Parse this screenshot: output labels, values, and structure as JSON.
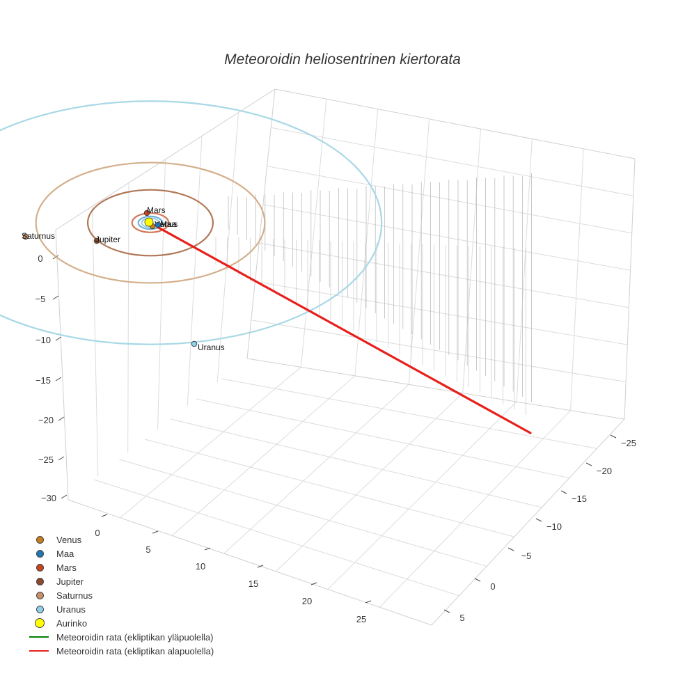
{
  "chart_data": {
    "type": "scatter3d",
    "title": "Meteoroidin heliosentrinen kiertorata",
    "axes": {
      "x": {
        "ticks": [
          "0",
          "5",
          "10",
          "15",
          "20",
          "25"
        ]
      },
      "y": {
        "ticks": [
          "−25",
          "−20",
          "−15",
          "−10",
          "−5",
          "0",
          "5"
        ]
      },
      "z": {
        "ticks": [
          "0",
          "−5",
          "−10",
          "−15",
          "−20",
          "−25",
          "−30"
        ]
      }
    },
    "orbits": [
      {
        "name": "Venus",
        "radius_au": 0.72,
        "color": "#9fd0e0"
      },
      {
        "name": "Maa",
        "radius_au": 1.0,
        "color": "#6fb0d8"
      },
      {
        "name": "Mars",
        "radius_au": 1.52,
        "color": "#d2785a"
      },
      {
        "name": "Jupiter",
        "radius_au": 5.2,
        "color": "#b07858"
      },
      {
        "name": "Saturnus",
        "radius_au": 9.5,
        "color": "#d4b08c"
      },
      {
        "name": "Uranus",
        "radius_au": 19.2,
        "color": "#a8d8e6"
      }
    ],
    "planets": [
      {
        "name": "Venus",
        "label": "Venus",
        "color": "#c97c1c"
      },
      {
        "name": "Maa",
        "label": "Maa",
        "color": "#1f77b4"
      },
      {
        "name": "Mars",
        "label": "Mars",
        "color": "#c8441e"
      },
      {
        "name": "Jupiter",
        "label": "Jupiter",
        "color": "#8b4a2b"
      },
      {
        "name": "Saturnus",
        "label": "Saturnus",
        "color": "#c89068"
      },
      {
        "name": "Uranus",
        "label": "Uranus",
        "color": "#8fd0e8"
      }
    ],
    "sun": {
      "name": "Aurinko",
      "color": "#ffff00"
    },
    "meteoroid_below_ecliptic": {
      "color": "#e8201c",
      "start": {
        "x": 25,
        "y": -28,
        "z": -18
      },
      "end": {
        "x": 0,
        "y": 0,
        "z": 0
      }
    },
    "legend": [
      {
        "label": "Venus",
        "kind": "dot",
        "color": "#c97c1c"
      },
      {
        "label": "Maa",
        "kind": "dot",
        "color": "#1f77b4"
      },
      {
        "label": "Mars",
        "kind": "dot",
        "color": "#c8441e"
      },
      {
        "label": "Jupiter",
        "kind": "dot",
        "color": "#8b4a2b"
      },
      {
        "label": "Saturnus",
        "kind": "dot",
        "color": "#c89068"
      },
      {
        "label": "Uranus",
        "kind": "dot",
        "color": "#8fd0e8"
      },
      {
        "label": "Aurinko",
        "kind": "bigdot",
        "color": "#ffff00"
      },
      {
        "label": "Meteoroidin rata (ekliptikan yläpuolella)",
        "kind": "line",
        "color": "#008000"
      },
      {
        "label": "Meteoroidin rata (ekliptikan alapuolella)",
        "kind": "line",
        "color": "#e8201c"
      }
    ]
  }
}
